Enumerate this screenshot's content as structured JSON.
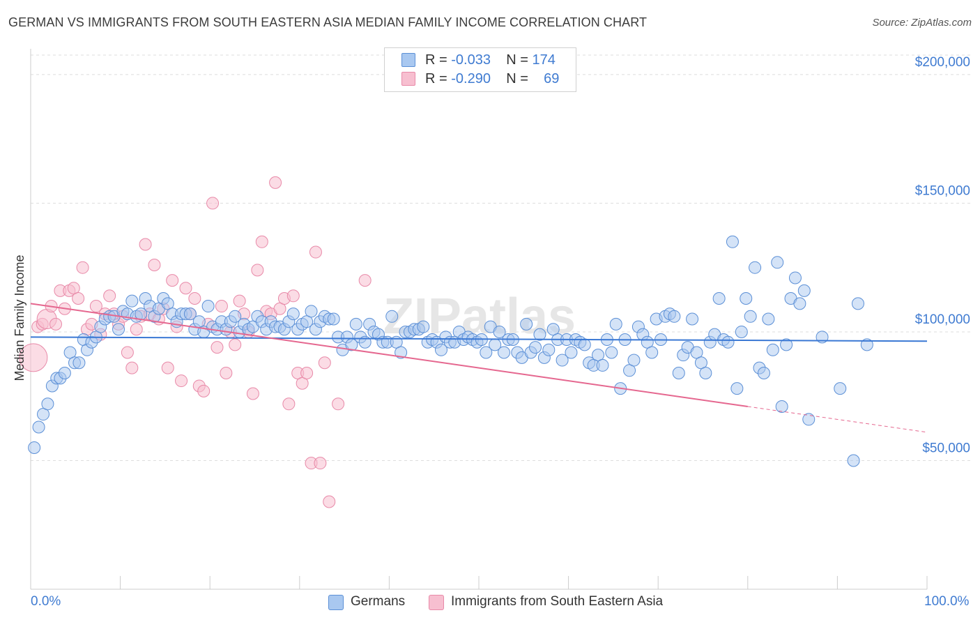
{
  "title": "GERMAN VS IMMIGRANTS FROM SOUTH EASTERN ASIA MEDIAN FAMILY INCOME CORRELATION CHART",
  "source": "Source: ZipAtlas.com",
  "legend": {
    "row1": {
      "r_label": "R = ",
      "r_value": "-0.033",
      "n_label": "N = ",
      "n_value": "174"
    },
    "row2": {
      "r_label": "R = ",
      "r_value": "-0.290",
      "n_label": "N = ",
      "n_value": "69"
    }
  },
  "watermark": "ZIPatlas",
  "colors": {
    "germans_fill": "#a9c8f0",
    "germans_stroke": "#5b8fd6",
    "germans_line": "#3a78d4",
    "sea_fill": "#f7bfd0",
    "sea_stroke": "#e889a8",
    "sea_line": "#e5678f",
    "axis_text": "#3f7bd1",
    "grid": "#dddddd"
  },
  "chart_data": {
    "type": "scatter",
    "title": "GERMAN VS IMMIGRANTS FROM SOUTH EASTERN ASIA MEDIAN FAMILY INCOME CORRELATION CHART",
    "xlabel": "",
    "ylabel": "Median Family Income",
    "xlim": [
      0,
      100
    ],
    "ylim": [
      0,
      210000
    ],
    "x_tick_labels": [
      "0.0%",
      "100.0%"
    ],
    "y_ticks": [
      50000,
      100000,
      150000,
      200000
    ],
    "y_tick_labels": [
      "$50,000",
      "$100,000",
      "$150,000",
      "$200,000"
    ],
    "grid": "horizontal dashed",
    "legend_position": "top-center and bottom",
    "series": [
      {
        "name": "Germans",
        "r": -0.033,
        "n": 174,
        "trend": {
          "x": [
            0,
            100
          ],
          "y": [
            98000,
            96400
          ]
        },
        "points": [
          [
            0.4,
            55000
          ],
          [
            0.9,
            63000
          ],
          [
            1.4,
            68000
          ],
          [
            1.9,
            72000
          ],
          [
            2.4,
            79000
          ],
          [
            2.9,
            82000
          ],
          [
            3.3,
            82000
          ],
          [
            3.8,
            84000
          ],
          [
            4.4,
            92000
          ],
          [
            4.9,
            88000
          ],
          [
            5.4,
            88000
          ],
          [
            5.9,
            97000
          ],
          [
            6.3,
            93000
          ],
          [
            6.8,
            96000
          ],
          [
            7.3,
            98000
          ],
          [
            7.8,
            102000
          ],
          [
            8.3,
            105000
          ],
          [
            8.8,
            106000
          ],
          [
            9.3,
            106000
          ],
          [
            9.8,
            101000
          ],
          [
            10.3,
            108000
          ],
          [
            10.8,
            107000
          ],
          [
            11.3,
            112000
          ],
          [
            11.8,
            106000
          ],
          [
            12.3,
            107000
          ],
          [
            12.8,
            113000
          ],
          [
            13.3,
            110000
          ],
          [
            13.8,
            106000
          ],
          [
            14.3,
            109000
          ],
          [
            14.8,
            113000
          ],
          [
            15.3,
            111000
          ],
          [
            15.8,
            107000
          ],
          [
            16.3,
            104000
          ],
          [
            16.8,
            107000
          ],
          [
            17.3,
            107000
          ],
          [
            17.8,
            107000
          ],
          [
            18.3,
            101000
          ],
          [
            18.8,
            104000
          ],
          [
            19.3,
            100000
          ],
          [
            19.8,
            110000
          ],
          [
            20.3,
            102000
          ],
          [
            20.8,
            101000
          ],
          [
            21.3,
            104000
          ],
          [
            21.8,
            101000
          ],
          [
            22.3,
            104000
          ],
          [
            22.8,
            106000
          ],
          [
            23.3,
            100000
          ],
          [
            23.8,
            103000
          ],
          [
            24.3,
            101000
          ],
          [
            24.8,
            102000
          ],
          [
            25.3,
            106000
          ],
          [
            25.8,
            104000
          ],
          [
            26.3,
            101000
          ],
          [
            26.8,
            104000
          ],
          [
            27.3,
            102000
          ],
          [
            27.8,
            102000
          ],
          [
            28.3,
            101000
          ],
          [
            28.8,
            104000
          ],
          [
            29.3,
            107000
          ],
          [
            29.8,
            101000
          ],
          [
            30.3,
            103000
          ],
          [
            30.8,
            104000
          ],
          [
            31.3,
            108000
          ],
          [
            31.8,
            101000
          ],
          [
            32.3,
            104000
          ],
          [
            32.8,
            106000
          ],
          [
            33.3,
            105000
          ],
          [
            33.8,
            105000
          ],
          [
            34.3,
            98000
          ],
          [
            34.8,
            93000
          ],
          [
            35.3,
            98000
          ],
          [
            35.8,
            95000
          ],
          [
            36.3,
            103000
          ],
          [
            36.8,
            98000
          ],
          [
            37.3,
            96000
          ],
          [
            37.8,
            103000
          ],
          [
            38.3,
            100000
          ],
          [
            38.8,
            99000
          ],
          [
            39.3,
            96000
          ],
          [
            39.8,
            96000
          ],
          [
            40.3,
            106000
          ],
          [
            40.8,
            96000
          ],
          [
            41.3,
            92000
          ],
          [
            41.8,
            100000
          ],
          [
            42.3,
            100000
          ],
          [
            42.8,
            101000
          ],
          [
            43.3,
            101000
          ],
          [
            43.8,
            102000
          ],
          [
            44.3,
            96000
          ],
          [
            44.8,
            97000
          ],
          [
            45.3,
            96000
          ],
          [
            45.8,
            93000
          ],
          [
            46.3,
            98000
          ],
          [
            46.8,
            96000
          ],
          [
            47.3,
            96000
          ],
          [
            47.8,
            100000
          ],
          [
            48.3,
            97000
          ],
          [
            48.8,
            98000
          ],
          [
            49.3,
            97000
          ],
          [
            49.8,
            96000
          ],
          [
            50.3,
            97000
          ],
          [
            50.8,
            92000
          ],
          [
            51.3,
            102000
          ],
          [
            51.8,
            95000
          ],
          [
            52.3,
            100000
          ],
          [
            52.8,
            92000
          ],
          [
            53.3,
            97000
          ],
          [
            53.8,
            97000
          ],
          [
            54.3,
            92000
          ],
          [
            54.8,
            90000
          ],
          [
            55.3,
            103000
          ],
          [
            55.8,
            92000
          ],
          [
            56.3,
            94000
          ],
          [
            56.8,
            99000
          ],
          [
            57.3,
            90000
          ],
          [
            57.8,
            93000
          ],
          [
            58.3,
            101000
          ],
          [
            58.8,
            97000
          ],
          [
            59.3,
            89000
          ],
          [
            59.8,
            97000
          ],
          [
            60.3,
            92000
          ],
          [
            60.8,
            97000
          ],
          [
            61.3,
            96000
          ],
          [
            61.8,
            95000
          ],
          [
            62.3,
            88000
          ],
          [
            62.8,
            87000
          ],
          [
            63.3,
            91000
          ],
          [
            63.8,
            87000
          ],
          [
            64.3,
            97000
          ],
          [
            64.8,
            92000
          ],
          [
            65.3,
            103000
          ],
          [
            65.8,
            78000
          ],
          [
            66.3,
            97000
          ],
          [
            66.8,
            85000
          ],
          [
            67.3,
            89000
          ],
          [
            67.8,
            102000
          ],
          [
            68.3,
            99000
          ],
          [
            68.8,
            96000
          ],
          [
            69.3,
            92000
          ],
          [
            69.8,
            105000
          ],
          [
            70.3,
            97000
          ],
          [
            70.8,
            106000
          ],
          [
            71.3,
            107000
          ],
          [
            71.8,
            106000
          ],
          [
            72.3,
            84000
          ],
          [
            72.8,
            91000
          ],
          [
            73.3,
            94000
          ],
          [
            73.8,
            105000
          ],
          [
            74.3,
            92000
          ],
          [
            74.8,
            88000
          ],
          [
            75.3,
            84000
          ],
          [
            75.8,
            96000
          ],
          [
            76.3,
            99000
          ],
          [
            76.8,
            113000
          ],
          [
            77.3,
            97000
          ],
          [
            77.8,
            96000
          ],
          [
            78.3,
            135000
          ],
          [
            78.8,
            78000
          ],
          [
            79.3,
            100000
          ],
          [
            79.8,
            113000
          ],
          [
            80.3,
            106000
          ],
          [
            80.8,
            125000
          ],
          [
            81.3,
            86000
          ],
          [
            81.8,
            84000
          ],
          [
            82.3,
            105000
          ],
          [
            82.8,
            93000
          ],
          [
            83.3,
            127000
          ],
          [
            83.8,
            71000
          ],
          [
            84.3,
            95000
          ],
          [
            84.8,
            113000
          ],
          [
            85.3,
            121000
          ],
          [
            85.8,
            111000
          ],
          [
            86.3,
            116000
          ],
          [
            86.8,
            66000
          ],
          [
            88.3,
            98000
          ],
          [
            90.3,
            78000
          ],
          [
            91.8,
            50000
          ],
          [
            92.3,
            111000
          ],
          [
            93.3,
            95000
          ]
        ]
      },
      {
        "name": "Immigrants from South Eastern Asia",
        "r": -0.29,
        "n": 69,
        "trend": {
          "x": [
            0,
            80
          ],
          "y": [
            111000,
            71000
          ]
        },
        "trend_dashed": {
          "x": [
            80,
            100
          ],
          "y": [
            71000,
            61000
          ]
        },
        "points": [
          [
            0.3,
            90000
          ],
          [
            0.8,
            102000
          ],
          [
            1.3,
            103000
          ],
          [
            1.8,
            105000
          ],
          [
            2.3,
            110000
          ],
          [
            2.8,
            103000
          ],
          [
            3.3,
            116000
          ],
          [
            3.8,
            109000
          ],
          [
            4.3,
            116000
          ],
          [
            4.8,
            117000
          ],
          [
            5.3,
            113000
          ],
          [
            5.8,
            125000
          ],
          [
            6.3,
            101000
          ],
          [
            6.8,
            103000
          ],
          [
            7.3,
            110000
          ],
          [
            7.8,
            99000
          ],
          [
            8.3,
            107000
          ],
          [
            8.8,
            114000
          ],
          [
            9.3,
            107000
          ],
          [
            9.8,
            103000
          ],
          [
            10.3,
            106000
          ],
          [
            10.8,
            92000
          ],
          [
            11.3,
            86000
          ],
          [
            11.8,
            101000
          ],
          [
            12.3,
            106000
          ],
          [
            12.8,
            134000
          ],
          [
            13.3,
            107000
          ],
          [
            13.8,
            126000
          ],
          [
            14.3,
            105000
          ],
          [
            14.8,
            109000
          ],
          [
            15.3,
            86000
          ],
          [
            15.8,
            120000
          ],
          [
            16.3,
            102000
          ],
          [
            16.8,
            81000
          ],
          [
            17.3,
            117000
          ],
          [
            17.8,
            107000
          ],
          [
            18.3,
            113000
          ],
          [
            18.8,
            79000
          ],
          [
            19.3,
            77000
          ],
          [
            19.8,
            103000
          ],
          [
            20.3,
            150000
          ],
          [
            20.8,
            94000
          ],
          [
            21.3,
            110000
          ],
          [
            21.8,
            84000
          ],
          [
            22.3,
            100000
          ],
          [
            22.8,
            95000
          ],
          [
            23.3,
            112000
          ],
          [
            23.8,
            107000
          ],
          [
            24.3,
            100000
          ],
          [
            24.8,
            76000
          ],
          [
            25.3,
            124000
          ],
          [
            25.8,
            135000
          ],
          [
            26.3,
            108000
          ],
          [
            26.8,
            107000
          ],
          [
            27.3,
            158000
          ],
          [
            27.8,
            109000
          ],
          [
            28.3,
            113000
          ],
          [
            28.8,
            72000
          ],
          [
            29.3,
            114000
          ],
          [
            29.8,
            84000
          ],
          [
            30.3,
            80000
          ],
          [
            30.8,
            84000
          ],
          [
            31.3,
            49000
          ],
          [
            31.8,
            131000
          ],
          [
            32.3,
            49000
          ],
          [
            32.8,
            88000
          ],
          [
            33.3,
            34000
          ],
          [
            34.3,
            72000
          ],
          [
            37.3,
            120000
          ]
        ]
      }
    ]
  },
  "bottom_legend": {
    "item1": "Germans",
    "item2": "Immigrants from South Eastern Asia"
  },
  "x_axis": {
    "left_label": "0.0%",
    "right_label": "100.0%"
  },
  "y_axis": {
    "label": "Median Family Income"
  }
}
